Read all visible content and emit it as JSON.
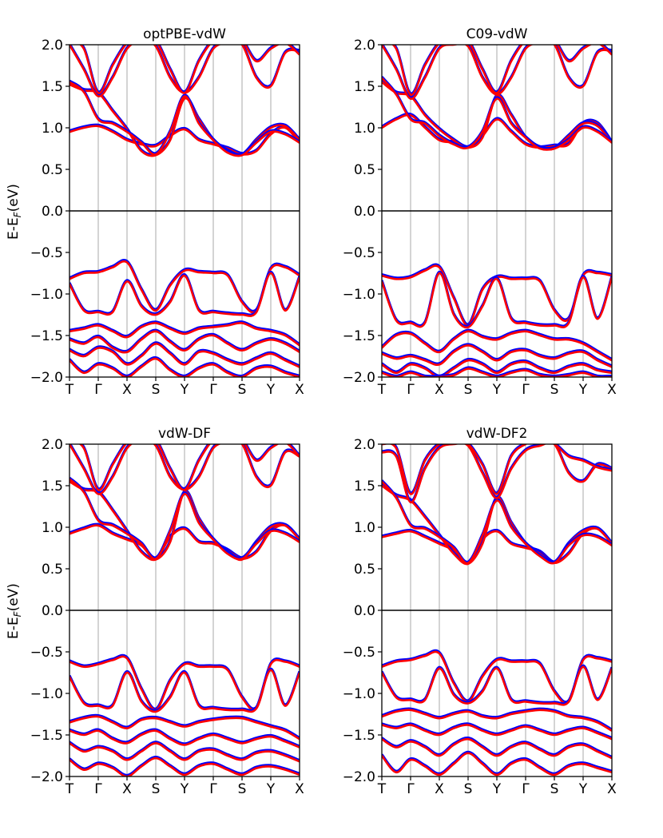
{
  "figure": {
    "ylabel": "E-E_F(eV)",
    "ylabel_main": "E-E",
    "ylabel_sub": "F",
    "ylabel_tail": "(eV)"
  },
  "chart_data": [
    {
      "type": "line",
      "title": "optPBE-vdW",
      "ylabel": "E-E_F(eV)",
      "ylim": [
        -2.0,
        2.0
      ],
      "yticks": [
        "2.0",
        "1.5",
        "1.0",
        "0.5",
        "0.0",
        "−0.5",
        "−1.0",
        "−1.5",
        "−2.0"
      ],
      "kpath": [
        "T",
        "Γ",
        "X",
        "S",
        "Y",
        "Γ",
        "S",
        "Y",
        "X"
      ],
      "grid": "vertical at high-symmetry points",
      "fermi_line": 0.0,
      "series_colors": {
        "set_a": "#0000ff",
        "set_b": "#ff0000"
      },
      "bands": {
        "x": [
          0,
          0.5,
          1,
          1.5,
          2,
          2.5,
          3,
          3.5,
          4,
          4.5,
          5,
          5.5,
          6,
          6.5,
          7,
          7.5,
          8
        ],
        "conduction": [
          [
            0.95,
            1.0,
            1.02,
            0.95,
            0.85,
            0.8,
            0.78,
            0.9,
            0.98,
            0.85,
            0.8,
            0.75,
            0.68,
            0.72,
            0.92,
            1.0,
            0.82
          ],
          [
            1.52,
            1.45,
            1.42,
            1.2,
            0.98,
            0.72,
            0.67,
            0.85,
            1.35,
            1.1,
            0.85,
            0.72,
            0.67,
            0.85,
            1.0,
            1.02,
            0.85
          ],
          [
            1.55,
            1.43,
            1.1,
            1.05,
            0.95,
            0.82,
            0.68,
            0.95,
            1.38,
            1.05,
            0.85,
            0.7,
            0.67,
            0.82,
            0.95,
            0.92,
            0.82
          ],
          [
            2.0,
            1.7,
            1.38,
            1.6,
            1.95,
            2.05,
            1.98,
            1.6,
            1.42,
            1.6,
            1.95,
            2.02,
            2.0,
            1.6,
            1.5,
            1.9,
            1.92
          ],
          [
            2.05,
            1.95,
            1.42,
            1.75,
            2.02,
            2.1,
            2.05,
            1.7,
            1.42,
            1.8,
            2.05,
            2.1,
            2.05,
            1.8,
            1.95,
            2.02,
            1.88
          ]
        ],
        "valence": [
          [
            -0.82,
            -0.75,
            -0.74,
            -0.68,
            -0.62,
            -0.95,
            -1.2,
            -0.9,
            -0.72,
            -0.74,
            -0.75,
            -0.78,
            -1.1,
            -1.2,
            -0.7,
            -0.68,
            -0.78
          ],
          [
            -0.88,
            -1.2,
            -1.22,
            -1.22,
            -0.85,
            -1.15,
            -1.25,
            -1.1,
            -0.78,
            -1.2,
            -1.22,
            -1.24,
            -1.25,
            -1.22,
            -0.75,
            -1.2,
            -0.8
          ],
          [
            -1.45,
            -1.42,
            -1.38,
            -1.45,
            -1.52,
            -1.4,
            -1.35,
            -1.42,
            -1.48,
            -1.42,
            -1.4,
            -1.38,
            -1.35,
            -1.42,
            -1.45,
            -1.5,
            -1.62
          ],
          [
            -1.55,
            -1.6,
            -1.52,
            -1.65,
            -1.7,
            -1.55,
            -1.45,
            -1.58,
            -1.68,
            -1.55,
            -1.5,
            -1.6,
            -1.68,
            -1.6,
            -1.55,
            -1.6,
            -1.7
          ],
          [
            -1.68,
            -1.75,
            -1.65,
            -1.7,
            -1.85,
            -1.75,
            -1.6,
            -1.72,
            -1.85,
            -1.7,
            -1.72,
            -1.8,
            -1.85,
            -1.78,
            -1.72,
            -1.8,
            -1.88
          ],
          [
            -1.8,
            -1.95,
            -1.85,
            -1.9,
            -2.0,
            -1.88,
            -1.78,
            -1.92,
            -2.0,
            -1.9,
            -1.85,
            -1.95,
            -2.0,
            -1.9,
            -1.88,
            -1.95,
            -2.0
          ]
        ]
      }
    },
    {
      "type": "line",
      "title": "C09-vdW",
      "ylim": [
        -2.0,
        2.0
      ],
      "yticks": [
        "2.0",
        "1.5",
        "1.0",
        "0.5",
        "0.0",
        "−0.5",
        "−1.0",
        "−1.5",
        "−2.0"
      ],
      "kpath": [
        "T",
        "Γ",
        "X",
        "S",
        "Y",
        "Γ",
        "S",
        "Y",
        "X"
      ],
      "grid": "vertical at high-symmetry points",
      "fermi_line": 0.0,
      "series_colors": {
        "set_a": "#0000ff",
        "set_b": "#ff0000"
      },
      "bands": {
        "x": [
          0,
          0.5,
          1,
          1.5,
          2,
          2.5,
          3,
          3.5,
          4,
          4.5,
          5,
          5.5,
          6,
          6.5,
          7,
          7.5,
          8
        ],
        "conduction": [
          [
            1.0,
            1.1,
            1.15,
            1.0,
            0.85,
            0.82,
            0.76,
            0.9,
            1.1,
            0.95,
            0.8,
            0.76,
            0.78,
            0.8,
            1.05,
            1.05,
            0.82
          ],
          [
            1.55,
            1.42,
            1.38,
            1.15,
            0.98,
            0.85,
            0.76,
            0.88,
            1.38,
            1.15,
            0.88,
            0.76,
            0.75,
            0.9,
            1.05,
            1.02,
            0.82
          ],
          [
            1.6,
            1.4,
            1.1,
            1.05,
            0.9,
            0.8,
            0.76,
            0.95,
            1.35,
            1.05,
            0.88,
            0.75,
            0.75,
            0.85,
            1.0,
            0.95,
            0.82
          ],
          [
            2.0,
            1.7,
            1.35,
            1.6,
            1.95,
            2.0,
            1.98,
            1.6,
            1.4,
            1.6,
            1.95,
            2.02,
            2.0,
            1.6,
            1.5,
            1.9,
            1.92
          ],
          [
            2.05,
            1.95,
            1.4,
            1.75,
            2.02,
            2.1,
            2.05,
            1.7,
            1.42,
            1.8,
            2.05,
            2.1,
            2.05,
            1.8,
            1.95,
            2.02,
            1.88
          ]
        ],
        "valence": [
          [
            -0.78,
            -0.82,
            -0.8,
            -0.72,
            -0.68,
            -1.05,
            -1.38,
            -0.95,
            -0.8,
            -0.82,
            -0.82,
            -0.85,
            -1.2,
            -1.3,
            -0.78,
            -0.75,
            -0.78
          ],
          [
            -0.85,
            -1.32,
            -1.35,
            -1.35,
            -0.75,
            -1.25,
            -1.4,
            -1.15,
            -0.82,
            -1.3,
            -1.35,
            -1.38,
            -1.38,
            -1.35,
            -0.8,
            -1.3,
            -0.8
          ],
          [
            -1.65,
            -1.5,
            -1.48,
            -1.6,
            -1.7,
            -1.55,
            -1.45,
            -1.52,
            -1.55,
            -1.48,
            -1.45,
            -1.5,
            -1.55,
            -1.55,
            -1.6,
            -1.7,
            -1.8
          ],
          [
            -1.72,
            -1.78,
            -1.75,
            -1.8,
            -1.85,
            -1.7,
            -1.62,
            -1.7,
            -1.8,
            -1.7,
            -1.68,
            -1.75,
            -1.78,
            -1.72,
            -1.7,
            -1.8,
            -1.88
          ],
          [
            -1.85,
            -1.95,
            -1.85,
            -1.9,
            -2.0,
            -1.9,
            -1.8,
            -1.85,
            -1.95,
            -1.85,
            -1.82,
            -1.9,
            -1.95,
            -1.88,
            -1.85,
            -1.92,
            -1.95
          ],
          [
            -1.95,
            -2.0,
            -1.95,
            -2.0,
            -2.0,
            -1.98,
            -1.9,
            -1.95,
            -2.0,
            -1.95,
            -1.92,
            -1.98,
            -2.0,
            -1.98,
            -1.95,
            -2.0,
            -2.0
          ]
        ]
      }
    },
    {
      "type": "line",
      "title": "vdW-DF",
      "ylabel": "E-E_F(eV)",
      "ylim": [
        -2.0,
        2.0
      ],
      "yticks": [
        "2.0",
        "1.5",
        "1.0",
        "0.5",
        "0.0",
        "−0.5",
        "−1.0",
        "−1.5",
        "−2.0"
      ],
      "kpath": [
        "T",
        "Γ",
        "X",
        "S",
        "Y",
        "Γ",
        "S",
        "Y",
        "X"
      ],
      "grid": "vertical at high-symmetry points",
      "fermi_line": 0.0,
      "series_colors": {
        "set_a": "#0000ff",
        "set_b": "#ff0000"
      },
      "bands": {
        "x": [
          0,
          0.5,
          1,
          1.5,
          2,
          2.5,
          3,
          3.5,
          4,
          4.5,
          5,
          5.5,
          6,
          6.5,
          7,
          7.5,
          8
        ],
        "conduction": [
          [
            0.92,
            0.98,
            1.02,
            0.92,
            0.85,
            0.78,
            0.62,
            0.88,
            0.98,
            0.82,
            0.8,
            0.72,
            0.62,
            0.7,
            0.95,
            1.02,
            0.85
          ],
          [
            1.55,
            1.45,
            1.42,
            1.2,
            0.95,
            0.7,
            0.61,
            0.82,
            1.42,
            1.1,
            0.85,
            0.7,
            0.61,
            0.82,
            1.0,
            1.02,
            0.85
          ],
          [
            1.58,
            1.42,
            1.08,
            1.02,
            0.92,
            0.8,
            0.62,
            0.95,
            1.4,
            1.05,
            0.85,
            0.68,
            0.62,
            0.8,
            0.95,
            0.92,
            0.82
          ],
          [
            2.0,
            1.7,
            1.4,
            1.6,
            1.95,
            2.05,
            1.98,
            1.6,
            1.45,
            1.6,
            1.95,
            2.02,
            2.0,
            1.6,
            1.5,
            1.9,
            1.85
          ],
          [
            2.05,
            1.95,
            1.45,
            1.75,
            2.02,
            2.1,
            2.05,
            1.7,
            1.45,
            1.8,
            2.05,
            2.1,
            2.05,
            1.8,
            1.95,
            2.02,
            1.85
          ]
        ],
        "valence": [
          [
            -0.62,
            -0.68,
            -0.65,
            -0.6,
            -0.58,
            -0.95,
            -1.2,
            -0.85,
            -0.65,
            -0.68,
            -0.68,
            -0.72,
            -1.05,
            -1.18,
            -0.65,
            -0.62,
            -0.68
          ],
          [
            -0.8,
            -1.12,
            -1.15,
            -1.15,
            -0.75,
            -1.1,
            -1.22,
            -1.05,
            -0.75,
            -1.15,
            -1.18,
            -1.2,
            -1.2,
            -1.18,
            -0.72,
            -1.15,
            -0.75
          ],
          [
            -1.35,
            -1.3,
            -1.28,
            -1.35,
            -1.42,
            -1.32,
            -1.3,
            -1.35,
            -1.4,
            -1.35,
            -1.32,
            -1.3,
            -1.3,
            -1.35,
            -1.4,
            -1.45,
            -1.55
          ],
          [
            -1.45,
            -1.5,
            -1.45,
            -1.55,
            -1.6,
            -1.5,
            -1.45,
            -1.55,
            -1.62,
            -1.55,
            -1.5,
            -1.55,
            -1.6,
            -1.55,
            -1.52,
            -1.58,
            -1.65
          ],
          [
            -1.6,
            -1.7,
            -1.65,
            -1.7,
            -1.8,
            -1.7,
            -1.6,
            -1.7,
            -1.8,
            -1.7,
            -1.68,
            -1.75,
            -1.8,
            -1.72,
            -1.7,
            -1.75,
            -1.82
          ],
          [
            -1.8,
            -1.92,
            -1.85,
            -1.9,
            -2.0,
            -1.88,
            -1.78,
            -1.88,
            -1.98,
            -1.88,
            -1.85,
            -1.92,
            -1.98,
            -1.9,
            -1.88,
            -1.92,
            -1.98
          ]
        ]
      }
    },
    {
      "type": "line",
      "title": "vdW-DF2",
      "ylim": [
        -2.0,
        2.0
      ],
      "yticks": [
        "2.0",
        "1.5",
        "1.0",
        "0.5",
        "0.0",
        "−0.5",
        "−1.0",
        "−1.5",
        "−2.0"
      ],
      "kpath": [
        "T",
        "Γ",
        "X",
        "S",
        "Y",
        "Γ",
        "S",
        "Y",
        "X"
      ],
      "grid": "vertical at high-symmetry points",
      "fermi_line": 0.0,
      "series_colors": {
        "set_a": "#0000ff",
        "set_b": "#ff0000"
      },
      "bands": {
        "x": [
          0,
          0.5,
          1,
          1.5,
          2,
          2.5,
          3,
          3.5,
          4,
          4.5,
          5,
          5.5,
          6,
          6.5,
          7,
          7.5,
          8
        ],
        "conduction": [
          [
            0.88,
            0.92,
            0.95,
            0.88,
            0.8,
            0.72,
            0.56,
            0.85,
            0.95,
            0.8,
            0.75,
            0.7,
            0.57,
            0.68,
            0.92,
            0.98,
            0.8
          ],
          [
            1.5,
            1.38,
            1.32,
            1.12,
            0.9,
            0.68,
            0.56,
            0.8,
            1.35,
            1.05,
            0.8,
            0.68,
            0.57,
            0.8,
            0.95,
            0.98,
            0.8
          ],
          [
            1.55,
            1.35,
            1.02,
            0.98,
            0.88,
            0.75,
            0.57,
            0.9,
            1.32,
            1.0,
            0.8,
            0.65,
            0.57,
            0.78,
            0.9,
            0.88,
            0.78
          ],
          [
            1.9,
            1.85,
            1.3,
            1.7,
            1.95,
            2.0,
            1.98,
            1.65,
            1.35,
            1.7,
            1.92,
            1.98,
            2.0,
            1.65,
            1.55,
            1.75,
            1.7
          ],
          [
            2.0,
            1.95,
            1.4,
            1.8,
            2.0,
            2.05,
            2.0,
            1.75,
            1.4,
            1.85,
            2.0,
            2.05,
            2.0,
            1.85,
            1.8,
            1.72,
            1.68
          ]
        ],
        "valence": [
          [
            -0.68,
            -0.62,
            -0.6,
            -0.55,
            -0.52,
            -0.88,
            -1.1,
            -0.8,
            -0.6,
            -0.62,
            -0.62,
            -0.65,
            -0.98,
            -1.1,
            -0.6,
            -0.58,
            -0.62
          ],
          [
            -0.75,
            -1.05,
            -1.08,
            -1.08,
            -0.7,
            -1.02,
            -1.12,
            -0.98,
            -0.7,
            -1.08,
            -1.1,
            -1.12,
            -1.12,
            -1.1,
            -0.68,
            -1.08,
            -0.7
          ],
          [
            -1.28,
            -1.22,
            -1.2,
            -1.25,
            -1.3,
            -1.25,
            -1.22,
            -1.28,
            -1.3,
            -1.25,
            -1.22,
            -1.2,
            -1.22,
            -1.28,
            -1.3,
            -1.35,
            -1.45
          ],
          [
            -1.38,
            -1.42,
            -1.38,
            -1.45,
            -1.5,
            -1.42,
            -1.38,
            -1.45,
            -1.5,
            -1.45,
            -1.4,
            -1.45,
            -1.5,
            -1.45,
            -1.42,
            -1.48,
            -1.55
          ],
          [
            -1.55,
            -1.65,
            -1.58,
            -1.65,
            -1.75,
            -1.62,
            -1.55,
            -1.65,
            -1.75,
            -1.65,
            -1.6,
            -1.68,
            -1.75,
            -1.65,
            -1.62,
            -1.7,
            -1.78
          ],
          [
            -1.75,
            -1.95,
            -1.8,
            -1.88,
            -1.98,
            -1.85,
            -1.72,
            -1.85,
            -1.98,
            -1.85,
            -1.8,
            -1.9,
            -1.98,
            -1.88,
            -1.85,
            -1.9,
            -1.95
          ]
        ]
      }
    }
  ]
}
